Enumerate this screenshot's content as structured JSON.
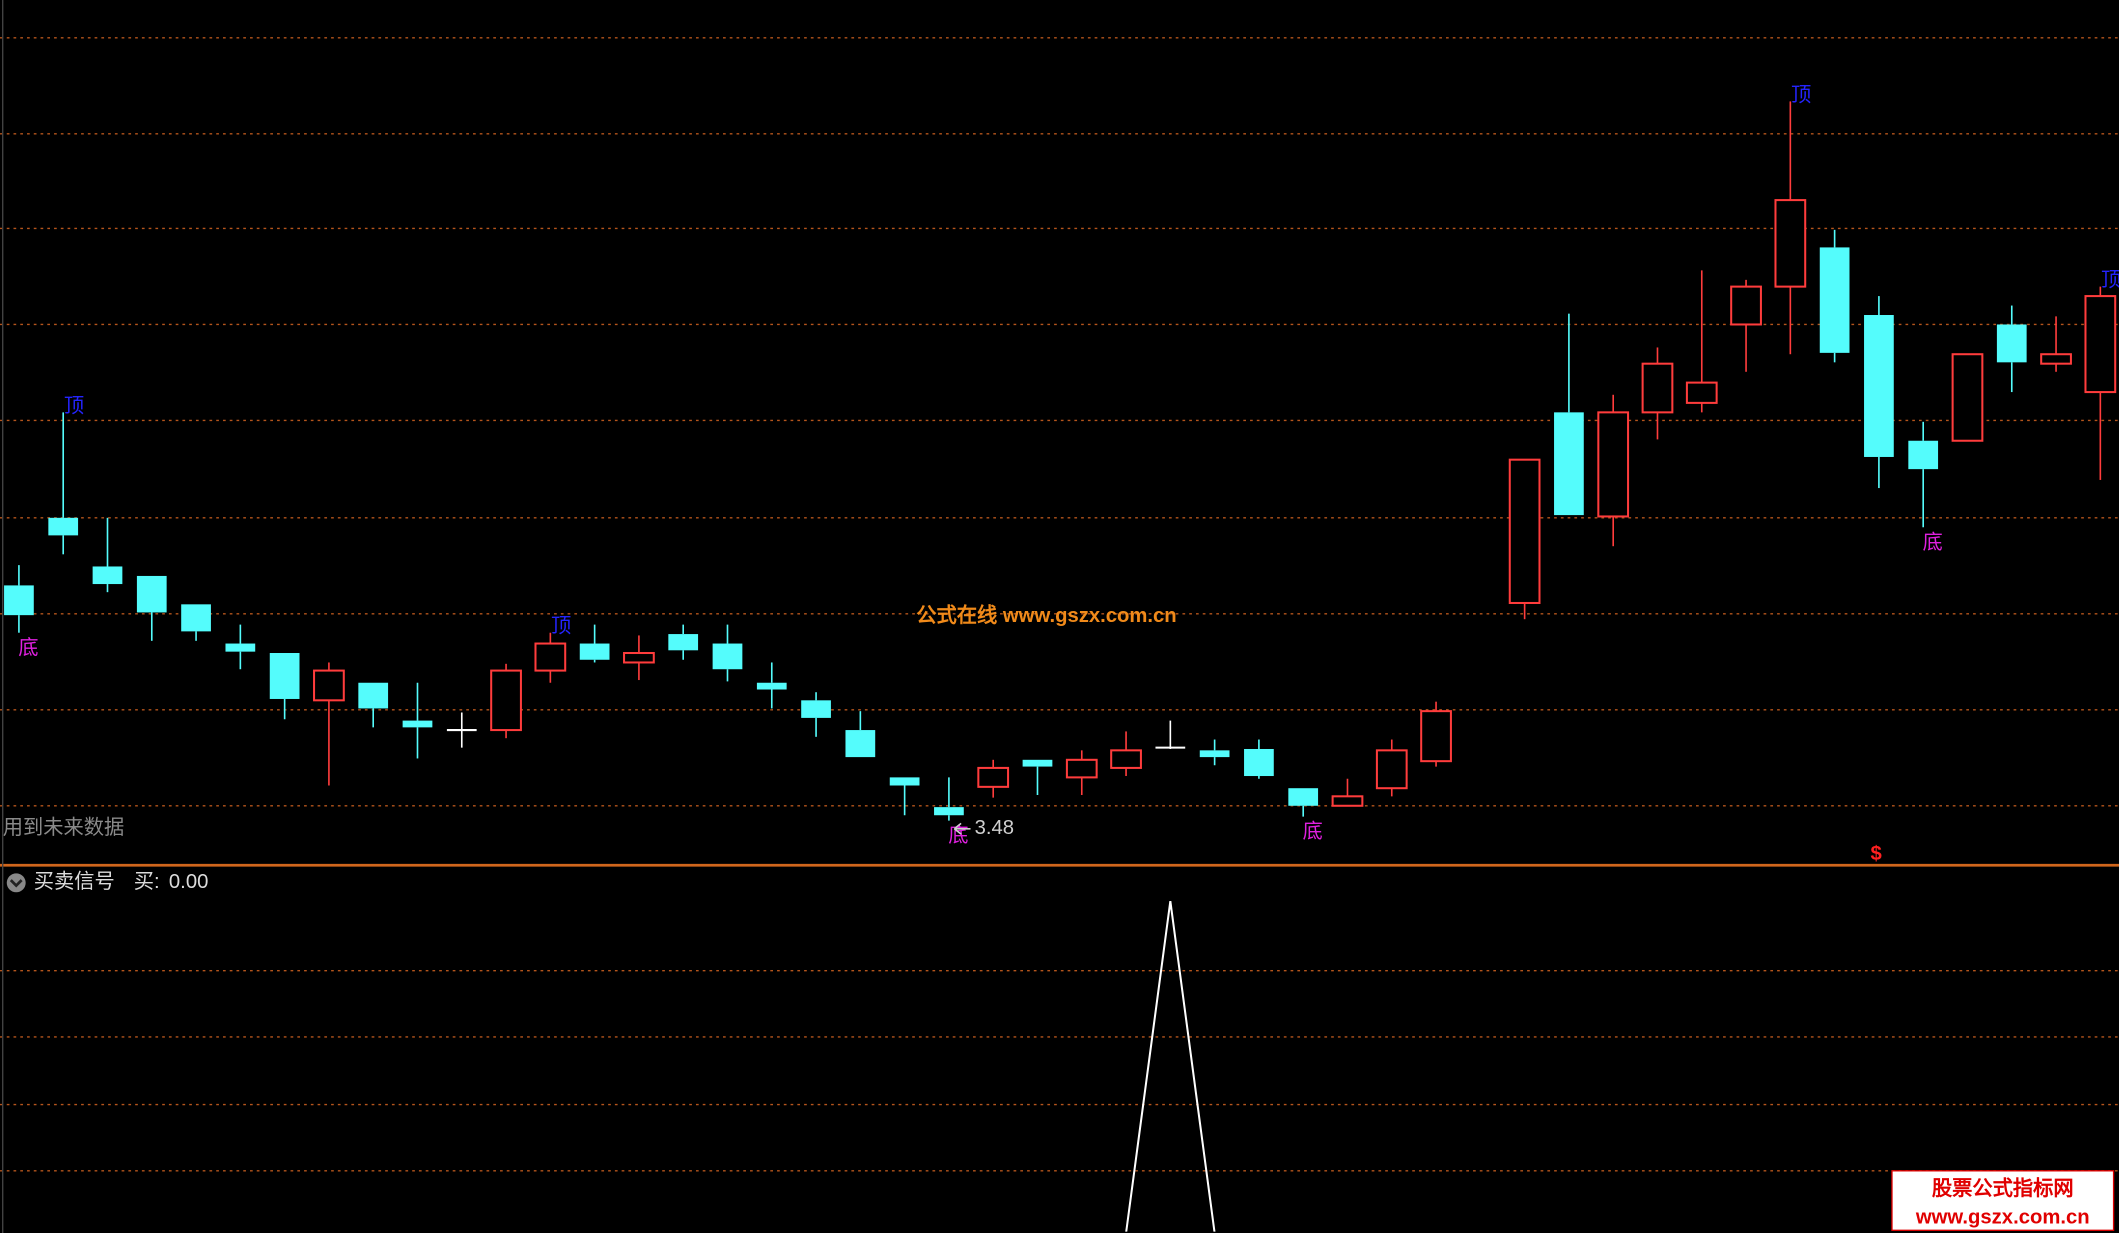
{
  "chart_data": {
    "type": "candlestick",
    "ylim": [
      3.15,
      9.55
    ],
    "up_color": "#ff3c3c",
    "down_color": "#54fcfc",
    "flat_color": "#ffffff",
    "open": [
      5.22,
      5.72,
      5.36,
      5.29,
      5.08,
      4.79,
      4.72,
      4.37,
      4.5,
      4.22,
      4.15,
      4.15,
      4.59,
      4.79,
      4.65,
      4.86,
      4.79,
      4.5,
      4.37,
      4.15,
      3.8,
      3.58,
      3.73,
      3.93,
      3.8,
      3.87,
      4.02,
      4.0,
      4.01,
      3.72,
      3.59,
      3.72,
      3.92,
      null,
      5.09,
      6.5,
      5.73,
      6.5,
      6.57,
      7.15,
      7.43,
      7.72,
      7.22,
      6.29,
      6.29,
      7.15,
      6.86,
      6.65
    ],
    "high": [
      5.37,
      6.5,
      5.72,
      5.29,
      5.08,
      4.93,
      4.72,
      4.65,
      4.5,
      4.5,
      4.28,
      4.64,
      4.87,
      4.93,
      4.85,
      4.93,
      4.93,
      4.65,
      4.43,
      4.29,
      3.8,
      3.8,
      3.93,
      3.93,
      4.0,
      4.14,
      4.22,
      4.08,
      4.08,
      3.72,
      3.79,
      4.08,
      4.36,
      null,
      6.15,
      7.23,
      6.63,
      6.98,
      7.55,
      7.48,
      8.8,
      7.85,
      7.36,
      6.43,
      6.93,
      7.29,
      7.21,
      7.43
    ],
    "low": [
      4.87,
      5.45,
      5.17,
      4.81,
      4.81,
      4.6,
      4.23,
      3.74,
      4.17,
      3.94,
      4.02,
      4.09,
      4.5,
      4.65,
      4.52,
      4.67,
      4.51,
      4.31,
      4.1,
      3.95,
      3.52,
      3.48,
      3.65,
      3.67,
      3.67,
      3.81,
      4.01,
      3.89,
      3.79,
      3.51,
      3.59,
      3.66,
      3.88,
      null,
      4.97,
      5.74,
      5.51,
      6.3,
      6.5,
      6.8,
      6.93,
      6.87,
      5.94,
      5.65,
      6.29,
      6.65,
      6.8,
      6.0
    ],
    "close": [
      5.0,
      5.59,
      5.23,
      5.02,
      4.88,
      4.73,
      4.38,
      4.59,
      4.31,
      4.17,
      4.15,
      4.59,
      4.79,
      4.67,
      4.72,
      4.74,
      4.6,
      4.45,
      4.24,
      3.95,
      3.74,
      3.52,
      3.87,
      3.88,
      3.93,
      4.0,
      4.02,
      3.95,
      3.81,
      3.59,
      3.66,
      4.0,
      4.29,
      null,
      6.15,
      5.74,
      6.5,
      6.86,
      6.72,
      7.43,
      8.07,
      6.94,
      6.17,
      6.08,
      6.93,
      6.87,
      6.93,
      7.36
    ],
    "top_labels": [
      null,
      "顶",
      null,
      null,
      null,
      null,
      null,
      null,
      null,
      null,
      null,
      null,
      "顶",
      null,
      null,
      null,
      null,
      null,
      null,
      null,
      null,
      null,
      null,
      null,
      null,
      null,
      null,
      null,
      null,
      null,
      null,
      null,
      null,
      null,
      null,
      null,
      null,
      null,
      null,
      null,
      "顶",
      null,
      null,
      null,
      null,
      null,
      null,
      "顶"
    ],
    "bottom_labels": [
      "底",
      null,
      null,
      null,
      null,
      null,
      null,
      null,
      null,
      null,
      null,
      null,
      null,
      null,
      null,
      null,
      null,
      null,
      null,
      null,
      null,
      "底",
      null,
      null,
      null,
      null,
      null,
      null,
      null,
      "底",
      null,
      null,
      null,
      null,
      null,
      null,
      null,
      null,
      null,
      null,
      null,
      null,
      null,
      "底",
      null,
      null,
      null,
      null
    ],
    "signal_marks": [
      null,
      null,
      null,
      null,
      null,
      null,
      null,
      null,
      null,
      null,
      null,
      null,
      null,
      null,
      null,
      null,
      null,
      null,
      null,
      null,
      null,
      null,
      null,
      null,
      null,
      null,
      null,
      null,
      null,
      null,
      null,
      null,
      null,
      null,
      null,
      null,
      null,
      null,
      null,
      null,
      null,
      null,
      "$",
      null,
      null,
      null,
      null,
      null
    ],
    "top_label_color": "#2424ff",
    "bottom_label_color": "#e020e0",
    "signal_mark_color": "#ff2020",
    "future_data_note": "用到未来数据",
    "watermark": "公式在线  www.gszx.com.cn",
    "indicator": {
      "title": "买卖信号",
      "ylim": [
        0,
        1.1
      ],
      "series": [
        {
          "name": "买:",
          "color": "#ffffff",
          "values": [
            0,
            0,
            0,
            0,
            0,
            0,
            0,
            0,
            0,
            0,
            0,
            0,
            0,
            0,
            0,
            0,
            0,
            0,
            0,
            0,
            0,
            0,
            0,
            0,
            0,
            0,
            1,
            0,
            0,
            0,
            0,
            0,
            0,
            null,
            0,
            0,
            0,
            0,
            0,
            0,
            0,
            0,
            0,
            0,
            0,
            0,
            0,
            0
          ],
          "value_labels": [
            "0.00"
          ]
        }
      ]
    },
    "footer_brand": "股票公式指标网",
    "footer_url": "www.gszx.com.cn"
  }
}
